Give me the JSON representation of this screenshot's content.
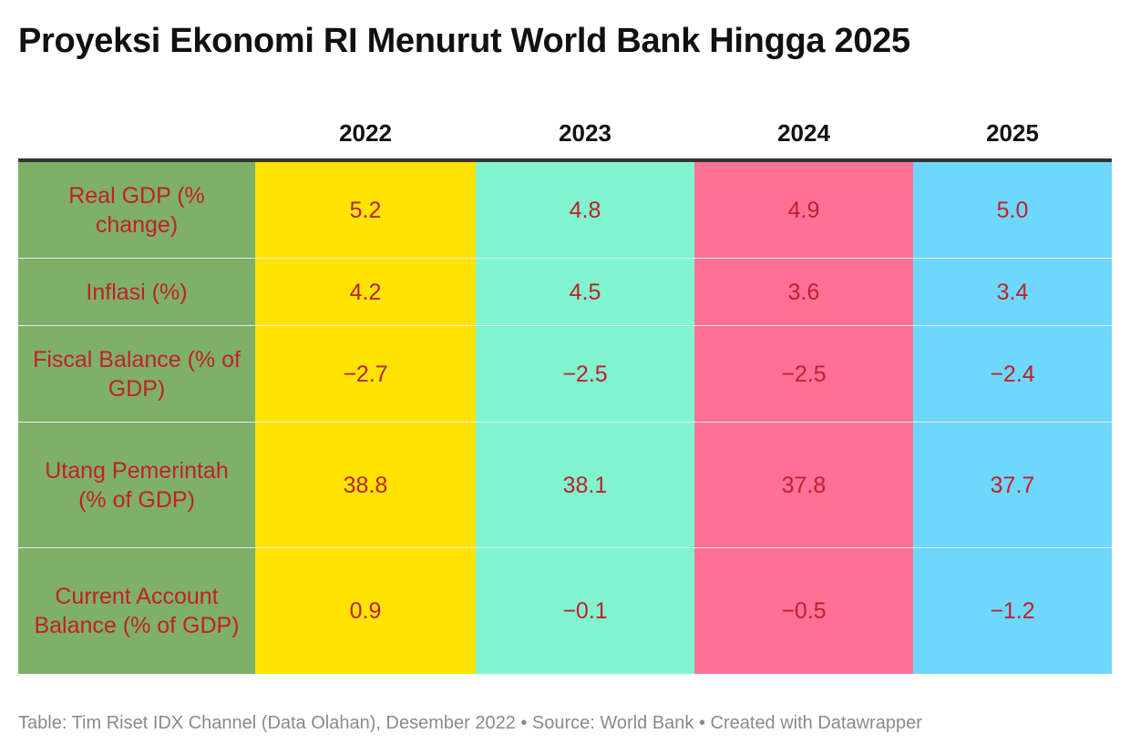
{
  "title": "Proyeksi Ekonomi RI Menurut World Bank Hingga 2025",
  "footer": "Table: Tim Riset IDX Channel (Data Olahan), Desember 2022 • Source: World Bank • Created with Datawrapper",
  "colors": {
    "label_column": "#7fb068",
    "col_2022": "#ffe400",
    "col_2023": "#80f5d0",
    "col_2024": "#ff7096",
    "col_2025": "#6ed8fc",
    "value_text": "#c0202a"
  },
  "chart_data": {
    "type": "table",
    "title": "Proyeksi Ekonomi RI Menurut World Bank Hingga 2025",
    "columns": [
      "",
      "2022",
      "2023",
      "2024",
      "2025"
    ],
    "rows": [
      {
        "label": "Real GDP (% change)",
        "values": [
          "5.2",
          "4.8",
          "4.9",
          "5.0"
        ]
      },
      {
        "label": "Inflasi (%)",
        "values": [
          "4.2",
          "4.5",
          "3.6",
          "3.4"
        ]
      },
      {
        "label": "Fiscal Balance (% of GDP)",
        "values": [
          "−2.7",
          "−2.5",
          "−2.5",
          "−2.4"
        ]
      },
      {
        "label": "Utang Pemerintah (% of GDP)",
        "values": [
          "38.8",
          "38.1",
          "37.8",
          "37.7"
        ]
      },
      {
        "label": "Current Account Balance (% of GDP)",
        "values": [
          "0.9",
          "−0.1",
          "−0.5",
          "−1.2"
        ]
      }
    ]
  }
}
